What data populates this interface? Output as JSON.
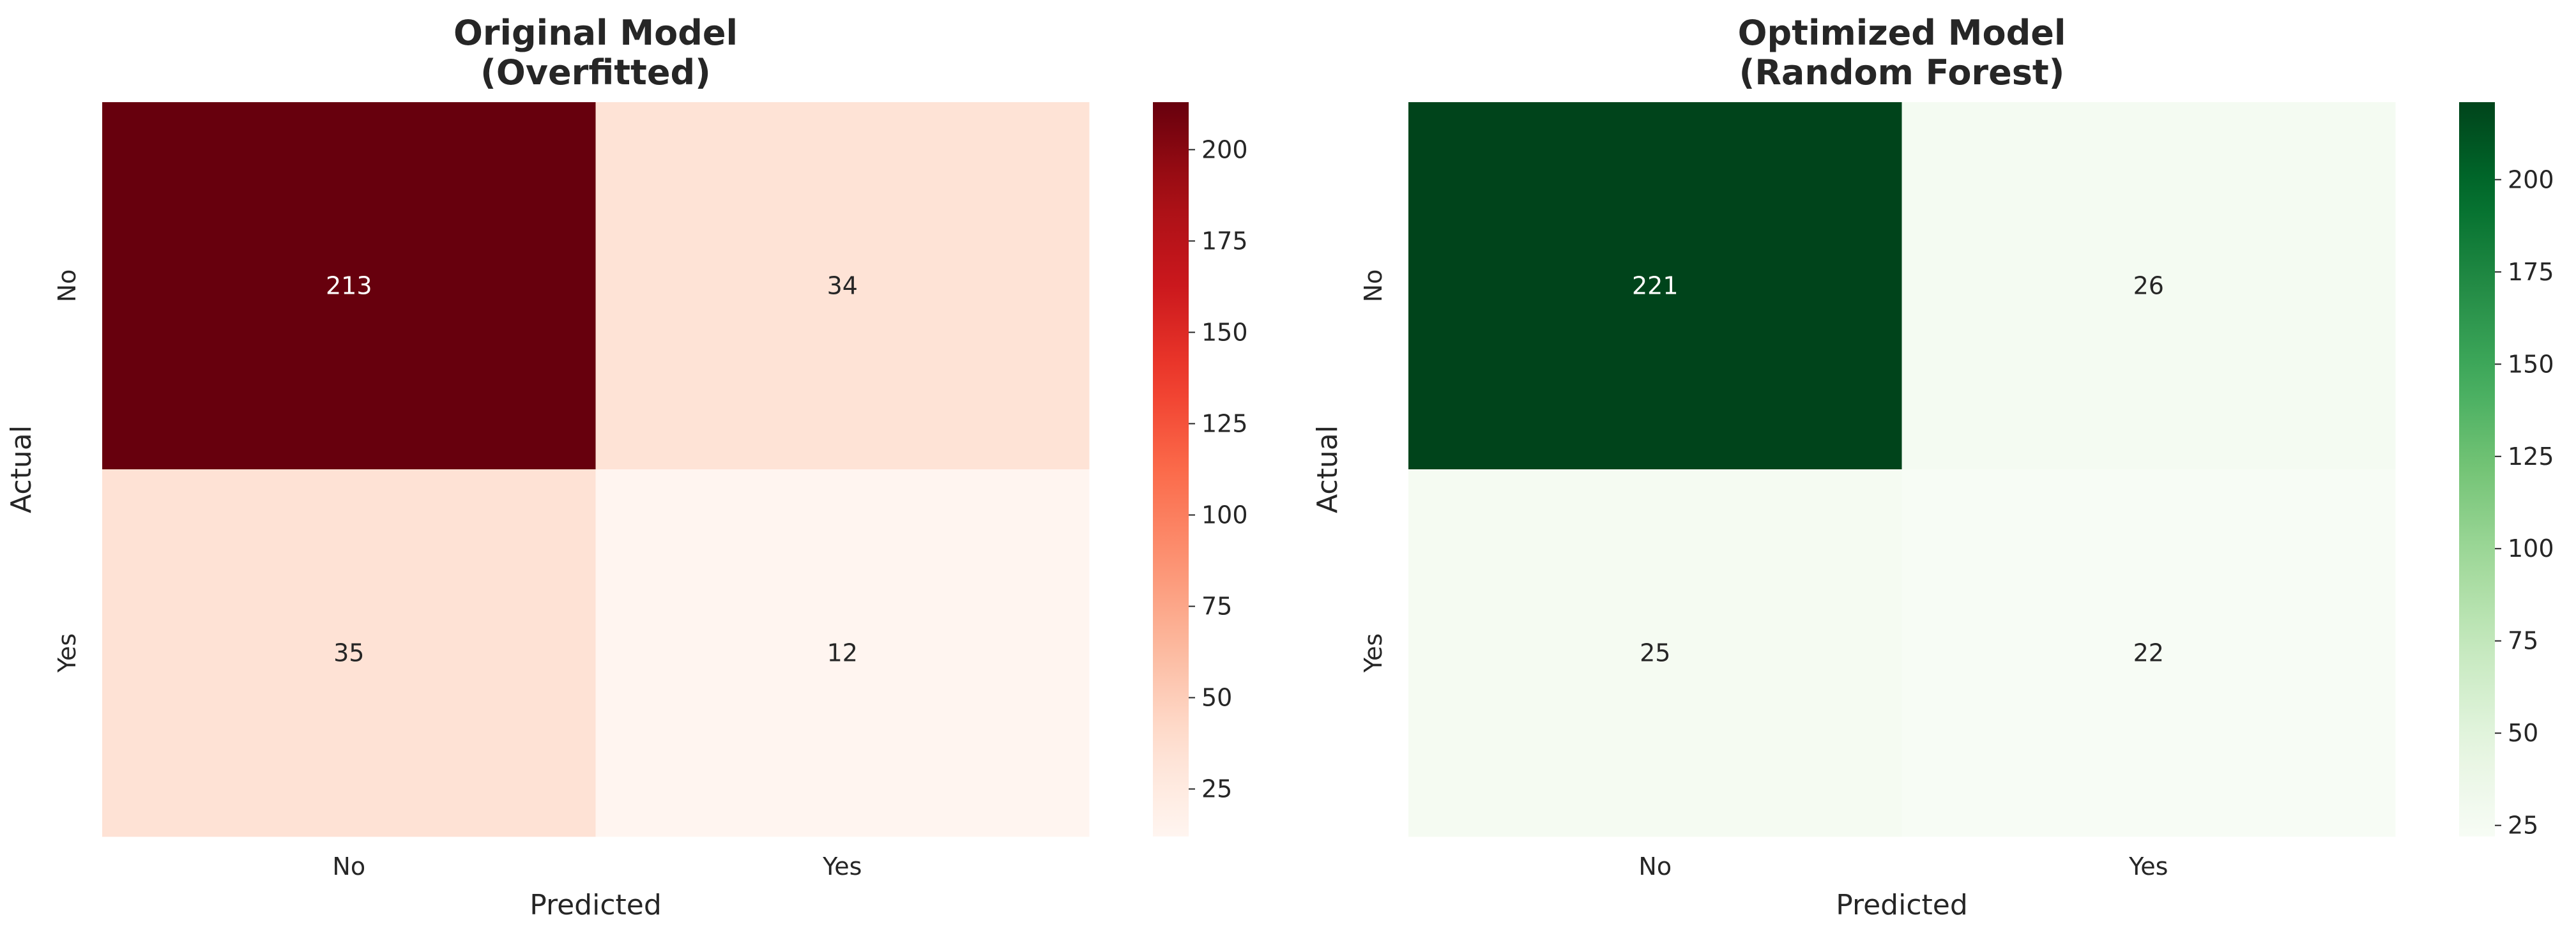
{
  "chart_data": [
    {
      "type": "heatmap",
      "title": "Original Model\n(Overfitted)",
      "xlabel": "Predicted",
      "ylabel": "Actual",
      "x_categories": [
        "No",
        "Yes"
      ],
      "y_categories": [
        "No",
        "Yes"
      ],
      "values": [
        [
          213,
          34
        ],
        [
          35,
          12
        ]
      ],
      "colormap": "Reds",
      "colorbar": {
        "min": 12,
        "max": 213,
        "ticks": [
          25,
          50,
          75,
          100,
          125,
          150,
          175,
          200
        ]
      }
    },
    {
      "type": "heatmap",
      "title": "Optimized Model\n(Random Forest)",
      "xlabel": "Predicted",
      "ylabel": "Actual",
      "x_categories": [
        "No",
        "Yes"
      ],
      "y_categories": [
        "No",
        "Yes"
      ],
      "values": [
        [
          221,
          26
        ],
        [
          25,
          22
        ]
      ],
      "colormap": "Greens",
      "colorbar": {
        "min": 22,
        "max": 221,
        "ticks": [
          25,
          50,
          75,
          100,
          125,
          150,
          175,
          200
        ]
      }
    }
  ]
}
